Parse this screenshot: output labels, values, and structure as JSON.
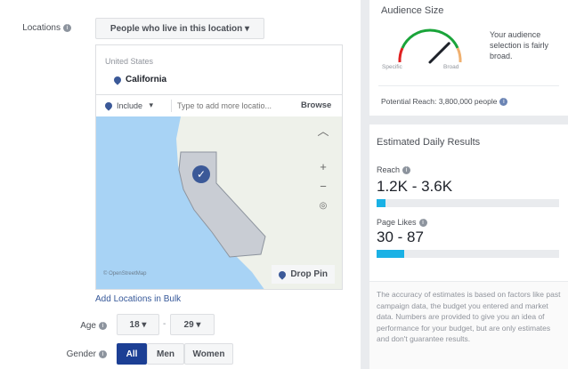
{
  "locations": {
    "label": "Locations",
    "type_select": "People who live in this location",
    "country": "United States",
    "selected": "California",
    "include_select": "Include",
    "search_placeholder": "Type to add more locatio...",
    "browse": "Browse",
    "map_attribution": "© OpenStreetMap",
    "drop_pin": "Drop Pin",
    "add_bulk": "Add Locations in Bulk"
  },
  "age": {
    "label": "Age",
    "min": "18",
    "max": "29",
    "separator": "-"
  },
  "gender": {
    "label": "Gender",
    "options": [
      "All",
      "Men",
      "Women"
    ],
    "selected": "All"
  },
  "audience": {
    "title": "Audience Size",
    "specific": "Specific",
    "broad": "Broad",
    "description": "Your audience selection is fairly broad.",
    "potential_reach": "Potential Reach: 3,800,000 people",
    "gauge_level": 0.75
  },
  "estimates": {
    "title": "Estimated Daily Results",
    "reach_label": "Reach",
    "reach_value": "1.2K - 3.6K",
    "reach_fill": 0.05,
    "likes_label": "Page Likes",
    "likes_value": "30 - 87",
    "likes_fill": 0.15,
    "disclaimer": "The accuracy of estimates is based on factors like past campaign data, the budget you entered and market data. Numbers are provided to give you an idea of performance for your budget, but are only estimates and don't guarantee results."
  }
}
